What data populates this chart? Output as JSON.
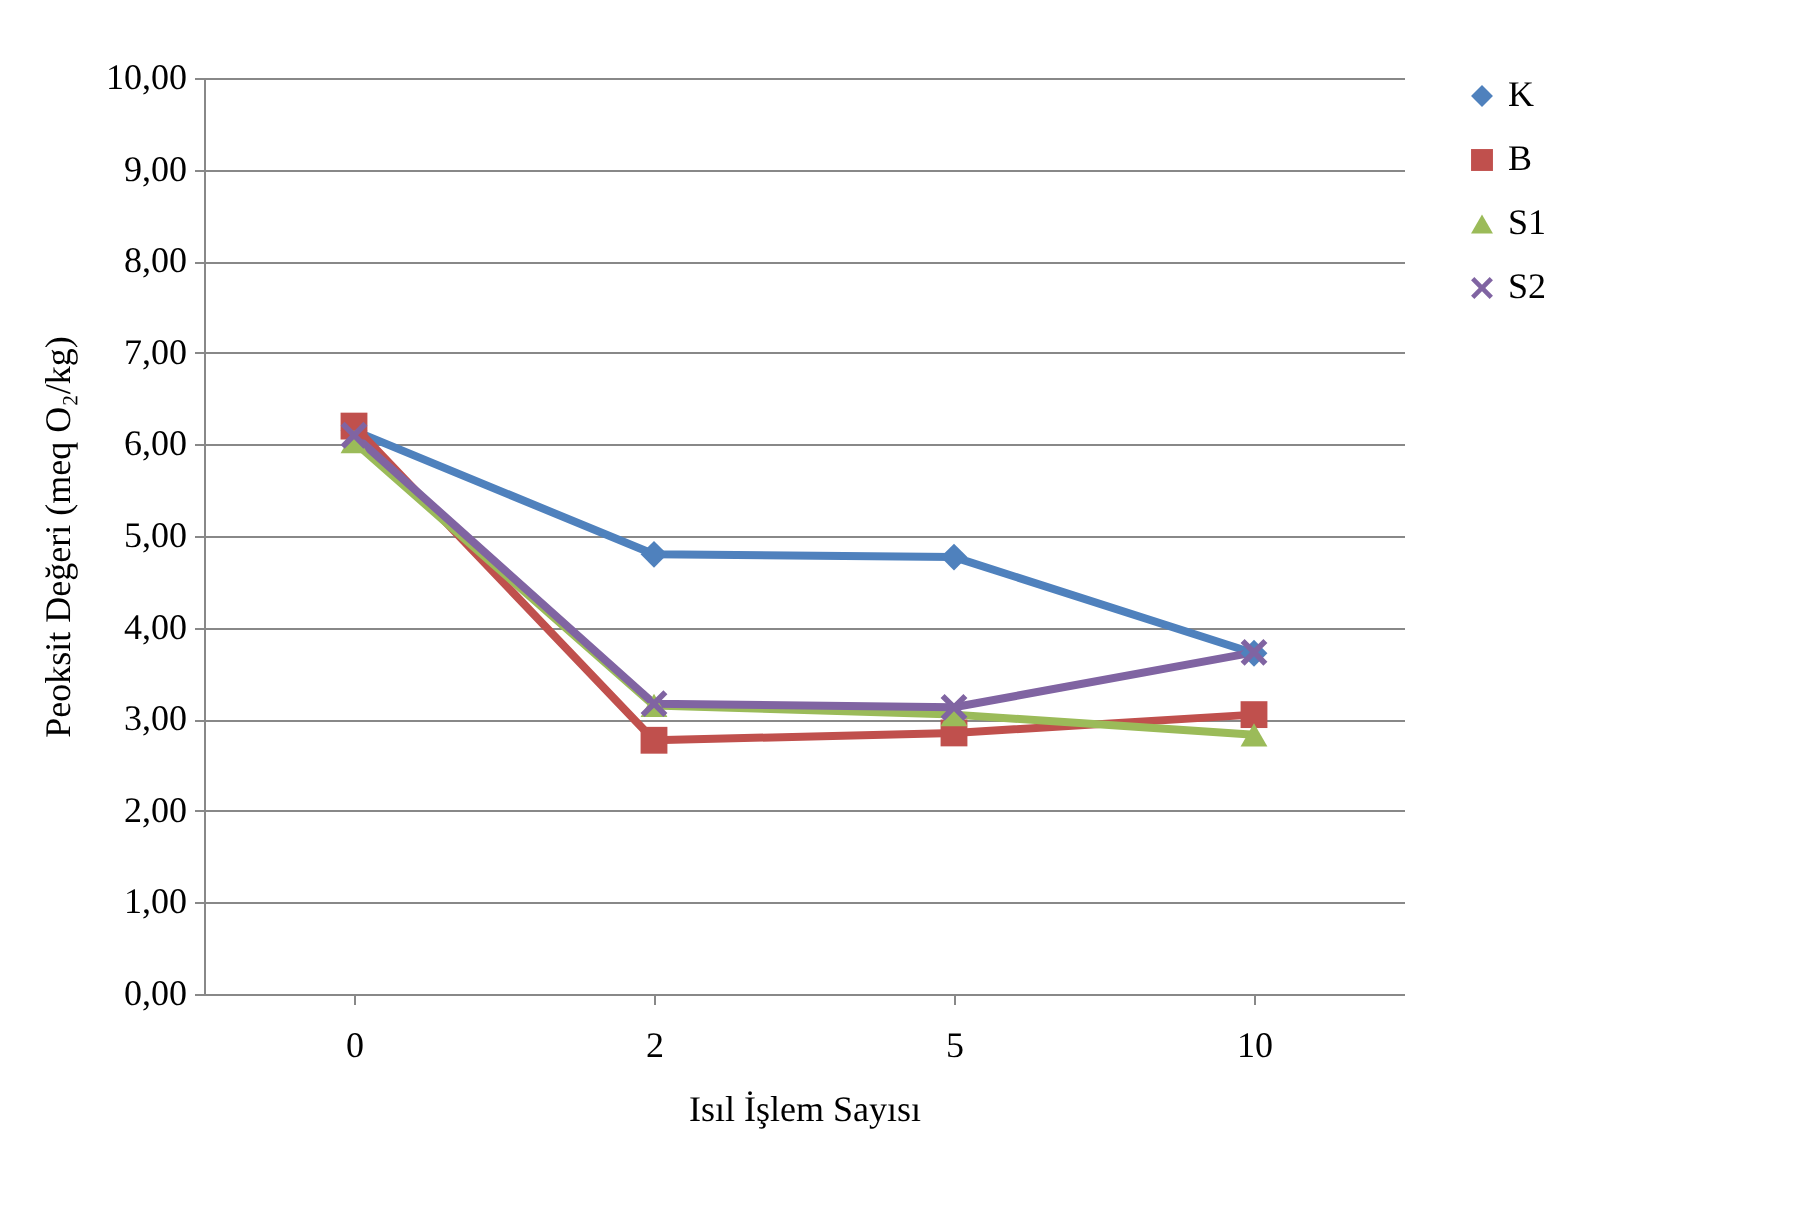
{
  "chart_data": {
    "type": "line",
    "xlabel": "Isıl İşlem Sayısı",
    "ylabel": "Peoksit Değeri (meq O₂/kg)",
    "categories": [
      "0",
      "2",
      "5",
      "10"
    ],
    "series": [
      {
        "name": "K",
        "color": "#4f81bd",
        "marker": "diamond",
        "values": [
          6.15,
          4.8,
          4.77,
          3.72
        ]
      },
      {
        "name": "B",
        "color": "#c0504d",
        "marker": "square",
        "values": [
          6.2,
          2.77,
          2.85,
          3.05
        ]
      },
      {
        "name": "S1",
        "color": "#9bbb59",
        "marker": "triangle",
        "values": [
          6.03,
          3.15,
          3.05,
          2.83
        ]
      },
      {
        "name": "S2",
        "color": "#8064a2",
        "marker": "cross",
        "values": [
          6.1,
          3.17,
          3.13,
          3.73
        ]
      }
    ],
    "ylim": [
      0,
      10
    ],
    "yticks": [
      {
        "value": 0,
        "label": "0,00"
      },
      {
        "value": 1,
        "label": "1,00"
      },
      {
        "value": 2,
        "label": "2,00"
      },
      {
        "value": 3,
        "label": "3,00"
      },
      {
        "value": 4,
        "label": "4,00"
      },
      {
        "value": 5,
        "label": "5,00"
      },
      {
        "value": 6,
        "label": "6,00"
      },
      {
        "value": 7,
        "label": "7,00"
      },
      {
        "value": 8,
        "label": "8,00"
      },
      {
        "value": 9,
        "label": "9,00"
      },
      {
        "value": 10,
        "label": "10,00"
      }
    ],
    "grid": "y",
    "legend": "right",
    "line_style": "solid"
  }
}
